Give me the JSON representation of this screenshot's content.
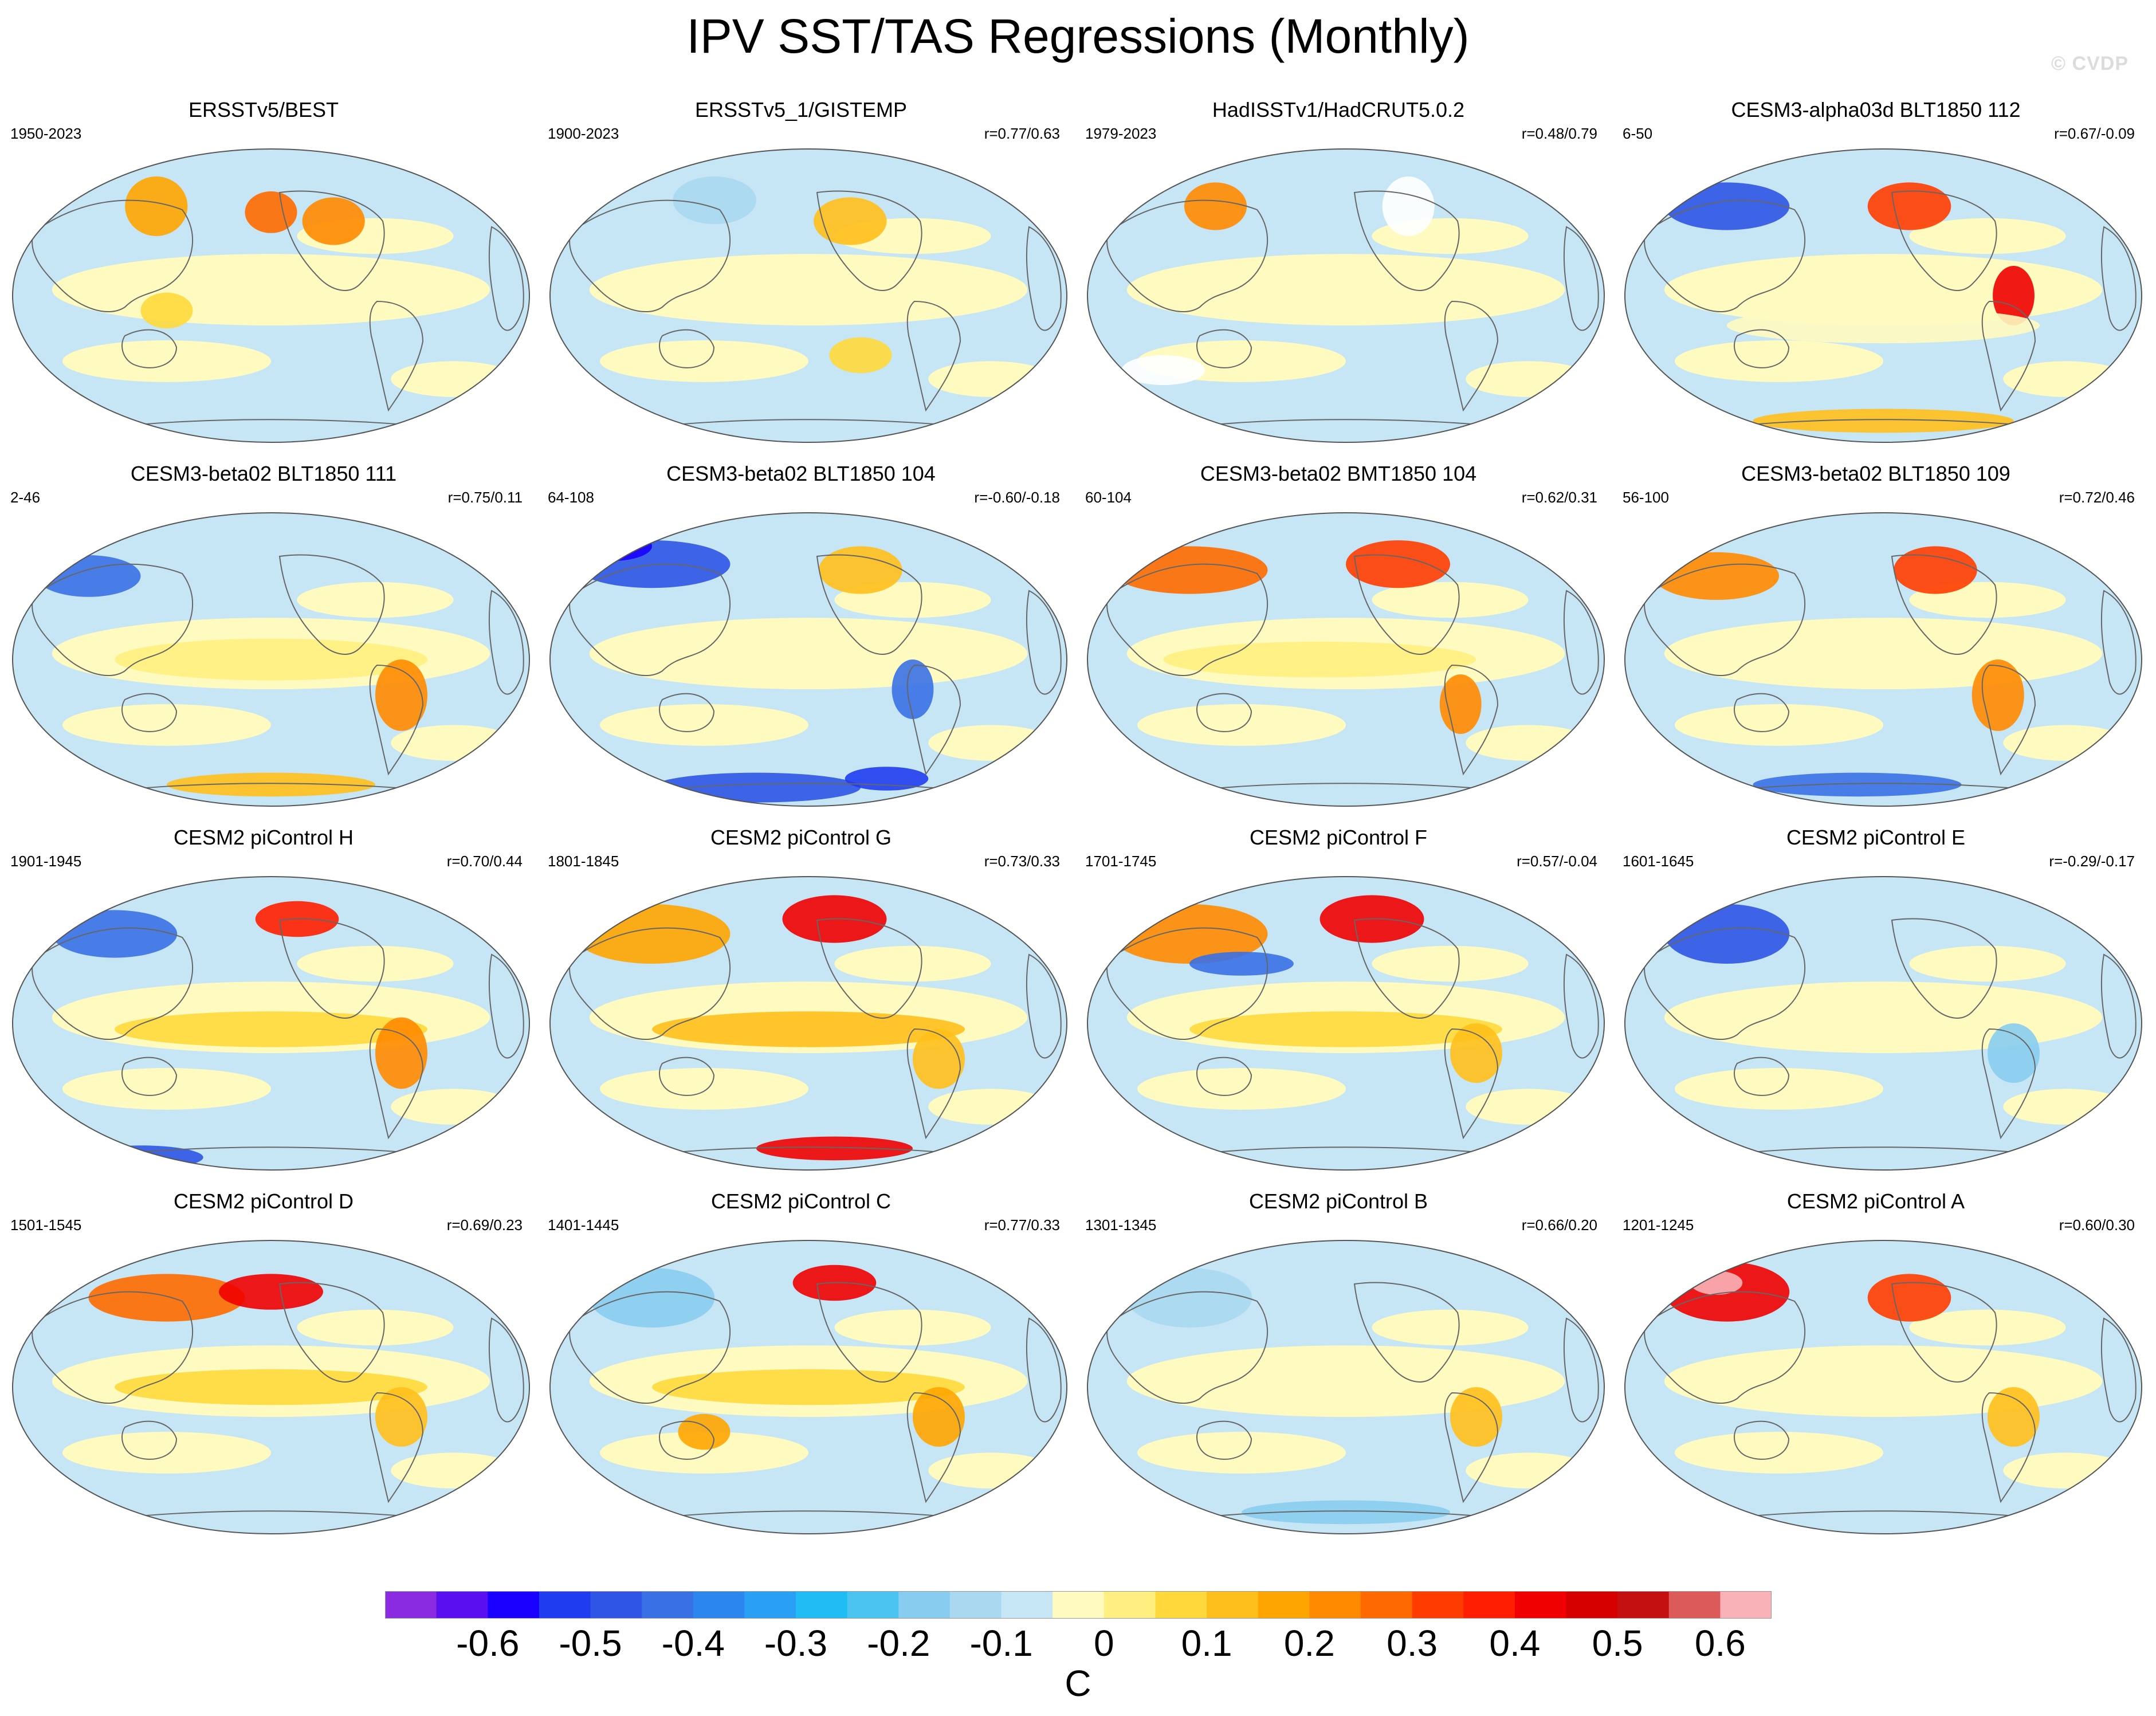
{
  "title": "IPV SST/TAS Regressions (Monthly)",
  "watermark": "© CVDP",
  "units": "C",
  "colorbar": {
    "colors": [
      "#8a2be2",
      "#5a0ff0",
      "#1a00ff",
      "#1f3cf0",
      "#2e55e6",
      "#3a70e6",
      "#2b86f0",
      "#2aa0f5",
      "#20bdf5",
      "#4cc4f0",
      "#88cdef",
      "#a9d8f0",
      "#c6e6f5",
      "#fffbc0",
      "#ffef80",
      "#ffd93b",
      "#ffbf1a",
      "#ffa500",
      "#ff8a00",
      "#ff6a00",
      "#ff3c00",
      "#ff1e00",
      "#f00000",
      "#d60000",
      "#c41010",
      "#dc5a5a",
      "#f9b2b8"
    ],
    "tick_labels": [
      "-0.6",
      "-0.5",
      "-0.4",
      "-0.3",
      "-0.2",
      "-0.1",
      "0",
      "0.1",
      "0.2",
      "0.3",
      "0.4",
      "0.5",
      "0.6"
    ]
  },
  "panels": [
    {
      "title": "ERSSTv5/BEST",
      "period": "1950-2023",
      "corr": ""
    },
    {
      "title": "ERSSTv5_1/GISTEMP",
      "period": "1900-2023",
      "corr": "r=0.77/0.63"
    },
    {
      "title": "HadISSTv1/HadCRUT5.0.2",
      "period": "1979-2023",
      "corr": "r=0.48/0.79"
    },
    {
      "title": "CESM3-alpha03d BLT1850 112",
      "period": "6-50",
      "corr": "r=0.67/-0.09"
    },
    {
      "title": "CESM3-beta02 BLT1850 111",
      "period": "2-46",
      "corr": "r=0.75/0.11"
    },
    {
      "title": "CESM3-beta02 BLT1850 104",
      "period": "64-108",
      "corr": "r=-0.60/-0.18"
    },
    {
      "title": "CESM3-beta02 BMT1850 104",
      "period": "60-104",
      "corr": "r=0.62/0.31"
    },
    {
      "title": "CESM3-beta02 BLT1850 109",
      "period": "56-100",
      "corr": "r=0.72/0.46"
    },
    {
      "title": "CESM2 piControl H",
      "period": "1901-1945",
      "corr": "r=0.70/0.44"
    },
    {
      "title": "CESM2 piControl G",
      "period": "1801-1845",
      "corr": "r=0.73/0.33"
    },
    {
      "title": "CESM2 piControl F",
      "period": "1701-1745",
      "corr": "r=0.57/-0.04"
    },
    {
      "title": "CESM2 piControl E",
      "period": "1601-1645",
      "corr": "r=-0.29/-0.17"
    },
    {
      "title": "CESM2 piControl D",
      "period": "1501-1545",
      "corr": "r=0.69/0.23"
    },
    {
      "title": "CESM2 piControl C",
      "period": "1401-1445",
      "corr": "r=0.77/0.33"
    },
    {
      "title": "CESM2 piControl B",
      "period": "1301-1345",
      "corr": "r=0.66/0.20"
    },
    {
      "title": "CESM2 piControl A",
      "period": "1201-1245",
      "corr": "r=0.60/0.30"
    }
  ]
}
